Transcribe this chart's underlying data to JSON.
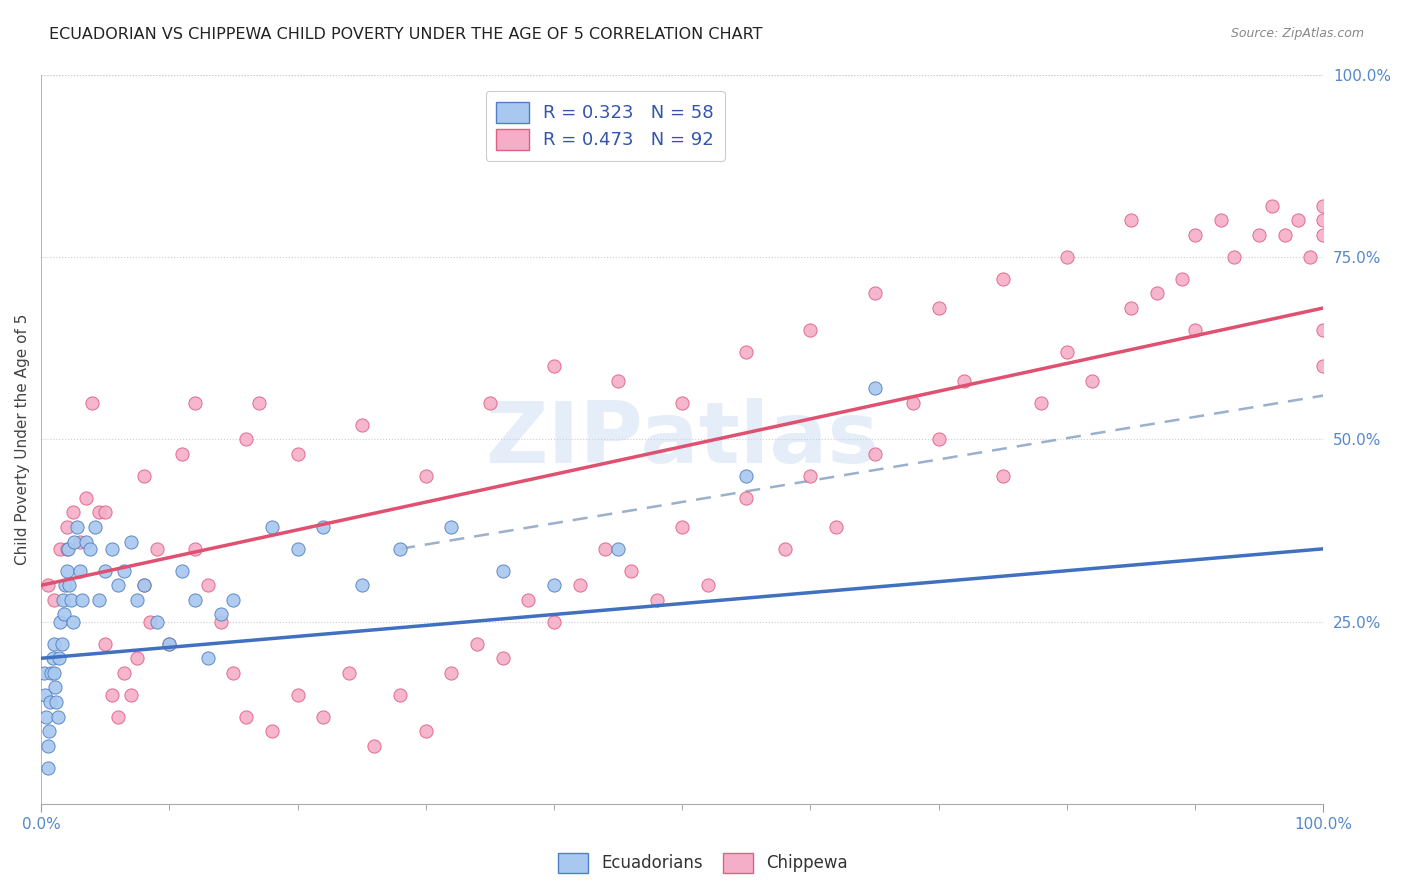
{
  "title": "ECUADORIAN VS CHIPPEWA CHILD POVERTY UNDER THE AGE OF 5 CORRELATION CHART",
  "source": "Source: ZipAtlas.com",
  "ylabel": "Child Poverty Under the Age of 5",
  "legend_label1": "Ecuadorians",
  "legend_label2": "Chippewa",
  "R1": 0.323,
  "N1": 58,
  "R2": 0.473,
  "N2": 92,
  "color_blue_fill": "#a8c8f0",
  "color_pink_fill": "#f5aec8",
  "color_blue_edge": "#5080c0",
  "color_pink_edge": "#e06080",
  "color_blue_line": "#4070c0",
  "color_pink_line": "#e05070",
  "color_text_axis": "#5588cc",
  "color_title": "#222222",
  "color_source": "#888888",
  "watermark": "ZIPatlas",
  "ecuadorians_x": [
    0.2,
    0.3,
    0.4,
    0.5,
    0.5,
    0.6,
    0.7,
    0.8,
    0.9,
    1.0,
    1.0,
    1.1,
    1.2,
    1.3,
    1.4,
    1.5,
    1.6,
    1.7,
    1.8,
    1.9,
    2.0,
    2.1,
    2.2,
    2.3,
    2.5,
    2.6,
    2.8,
    3.0,
    3.2,
    3.5,
    3.8,
    4.2,
    4.5,
    5.0,
    5.5,
    6.0,
    6.5,
    7.0,
    7.5,
    8.0,
    9.0,
    10.0,
    11.0,
    12.0,
    13.0,
    14.0,
    15.0,
    18.0,
    20.0,
    22.0,
    25.0,
    28.0,
    32.0,
    36.0,
    40.0,
    45.0,
    55.0,
    65.0
  ],
  "ecuadorians_y": [
    18,
    15,
    12,
    8,
    5,
    10,
    14,
    18,
    20,
    22,
    18,
    16,
    14,
    12,
    20,
    25,
    22,
    28,
    26,
    30,
    32,
    35,
    30,
    28,
    25,
    36,
    38,
    32,
    28,
    36,
    35,
    38,
    28,
    32,
    35,
    30,
    32,
    36,
    28,
    30,
    25,
    22,
    32,
    28,
    20,
    26,
    28,
    38,
    35,
    38,
    30,
    35,
    38,
    32,
    30,
    35,
    45,
    57
  ],
  "chippewa_x": [
    0.5,
    1.0,
    1.5,
    2.0,
    2.5,
    3.0,
    3.5,
    4.0,
    4.5,
    5.0,
    5.5,
    6.0,
    6.5,
    7.0,
    7.5,
    8.0,
    8.5,
    9.0,
    10.0,
    11.0,
    12.0,
    13.0,
    14.0,
    15.0,
    16.0,
    17.0,
    18.0,
    20.0,
    22.0,
    24.0,
    26.0,
    28.0,
    30.0,
    32.0,
    34.0,
    36.0,
    38.0,
    40.0,
    42.0,
    44.0,
    46.0,
    48.0,
    50.0,
    52.0,
    55.0,
    58.0,
    60.0,
    62.0,
    65.0,
    68.0,
    70.0,
    72.0,
    75.0,
    78.0,
    80.0,
    82.0,
    85.0,
    87.0,
    89.0,
    90.0,
    92.0,
    93.0,
    95.0,
    96.0,
    97.0,
    98.0,
    99.0,
    100.0,
    100.0,
    100.0,
    100.0,
    100.0,
    2.0,
    5.0,
    8.0,
    12.0,
    16.0,
    20.0,
    25.0,
    30.0,
    35.0,
    40.0,
    45.0,
    50.0,
    55.0,
    60.0,
    65.0,
    70.0,
    75.0,
    80.0,
    85.0,
    90.0
  ],
  "chippewa_y": [
    30,
    28,
    35,
    38,
    40,
    36,
    42,
    55,
    40,
    22,
    15,
    12,
    18,
    15,
    20,
    30,
    25,
    35,
    22,
    48,
    35,
    30,
    25,
    18,
    12,
    55,
    10,
    15,
    12,
    18,
    8,
    15,
    10,
    18,
    22,
    20,
    28,
    25,
    30,
    35,
    32,
    28,
    38,
    30,
    42,
    35,
    45,
    38,
    48,
    55,
    50,
    58,
    45,
    55,
    62,
    58,
    68,
    70,
    72,
    65,
    80,
    75,
    78,
    82,
    78,
    80,
    75,
    78,
    82,
    80,
    65,
    60,
    35,
    40,
    45,
    55,
    50,
    48,
    52,
    45,
    55,
    60,
    58,
    55,
    62,
    65,
    70,
    68,
    72,
    75,
    80,
    78
  ],
  "blue_line_x0": 0,
  "blue_line_y0": 20,
  "blue_line_x1": 100,
  "blue_line_y1": 35,
  "pink_line_x0": 0,
  "pink_line_y0": 30,
  "pink_line_x1": 100,
  "pink_line_y1": 68,
  "dash_line_x0": 28,
  "dash_line_y0": 35,
  "dash_line_x1": 100,
  "dash_line_y1": 56,
  "xlim": [
    0,
    100
  ],
  "ylim": [
    0,
    100
  ],
  "ytick_positions": [
    25,
    50,
    75,
    100
  ],
  "ytick_labels": [
    "25.0%",
    "50.0%",
    "75.0%",
    "100.0%"
  ]
}
